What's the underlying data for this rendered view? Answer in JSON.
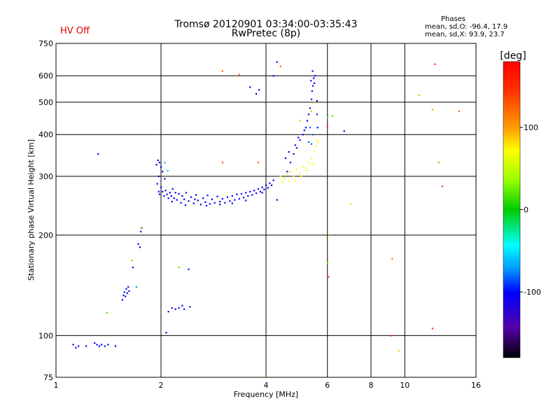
{
  "header": {
    "title_line1": "Tromsø 20120901 03:34:00-03:35:43",
    "title_line2": "RwPretec (8p)",
    "status": "HV Off",
    "phases_title": "Phases",
    "phases_o": "mean, sd,O: -96.4, 17.9",
    "phases_x": "mean, sd,X:  93.9, 23.7"
  },
  "colors": {
    "status": "#e00000",
    "gridline": "#000000"
  },
  "chart_data": {
    "type": "scatter",
    "xlabel": "Frequency [MHz]",
    "ylabel": "Stationary phase Virtual Height [km]",
    "x_scale": "log",
    "y_scale": "log",
    "xlim": [
      1,
      16
    ],
    "ylim": [
      75,
      750
    ],
    "x_ticks": [
      1,
      2,
      4,
      6,
      8,
      10,
      16
    ],
    "x_tick_labels": [
      "1",
      "2",
      "4",
      "6",
      "8",
      "10",
      "16"
    ],
    "x_grid": [
      2,
      4,
      6,
      8,
      10
    ],
    "y_ticks": [
      75,
      100,
      200,
      300,
      400,
      500,
      600,
      750
    ],
    "y_tick_labels": [
      "75",
      "100",
      "200",
      "300",
      "400",
      "500",
      "600",
      "750"
    ],
    "y_grid": [
      100,
      200,
      300,
      400,
      500,
      600
    ],
    "grid": true,
    "colorbar": {
      "label": "[deg]",
      "range": [
        -180,
        180
      ],
      "ticks": [
        100,
        0,
        -100
      ],
      "tick_labels": [
        "100",
        "0",
        "-100"
      ]
    },
    "series": [
      {
        "points": [
          [
            1.12,
            94,
            -100
          ],
          [
            1.14,
            92,
            -100
          ],
          [
            1.16,
            93,
            -100
          ],
          [
            1.22,
            93,
            -100
          ],
          [
            1.29,
            95,
            -100
          ],
          [
            1.31,
            94,
            -100
          ],
          [
            1.33,
            93,
            -100
          ],
          [
            1.35,
            94,
            -100
          ],
          [
            1.38,
            93,
            -100
          ],
          [
            1.41,
            94,
            -100
          ],
          [
            1.48,
            93,
            -100
          ],
          [
            1.55,
            128,
            -100
          ],
          [
            1.56,
            132,
            -100
          ],
          [
            1.57,
            135,
            -100
          ],
          [
            1.58,
            131,
            -100
          ],
          [
            1.59,
            138,
            -100
          ],
          [
            1.6,
            134,
            -100
          ],
          [
            1.61,
            140,
            -100
          ],
          [
            1.62,
            136,
            -100
          ],
          [
            1.66,
            160,
            -100
          ],
          [
            1.72,
            188,
            -100
          ],
          [
            1.74,
            184,
            -100
          ],
          [
            1.75,
            205,
            -100
          ],
          [
            1.76,
            210,
            -100
          ],
          [
            2.1,
            118,
            -100
          ],
          [
            2.15,
            121,
            -100
          ],
          [
            2.2,
            120,
            -100
          ],
          [
            2.25,
            121,
            -100
          ],
          [
            2.3,
            123,
            -100
          ],
          [
            2.33,
            120,
            -100
          ],
          [
            2.42,
            122,
            -100
          ],
          [
            2.4,
            158,
            -100
          ],
          [
            1.32,
            350,
            -100
          ],
          [
            2.07,
            102,
            -100
          ],
          [
            6.7,
            410,
            -100
          ],
          [
            4.3,
            255,
            -100
          ],
          [
            1.94,
            325,
            -100
          ],
          [
            1.96,
            335,
            -100
          ],
          [
            1.98,
            330,
            -100
          ],
          [
            2.0,
            320,
            -100
          ],
          [
            2.02,
            310,
            -100
          ],
          [
            1.97,
            300,
            -100
          ],
          [
            2.05,
            295,
            -100
          ],
          [
            1.95,
            285,
            -100
          ],
          [
            1.97,
            270,
            -100
          ],
          [
            1.98,
            265,
            -100
          ],
          [
            2.0,
            278,
            -100
          ],
          [
            2.02,
            270,
            -100
          ],
          [
            2.04,
            262,
            -100
          ],
          [
            2.06,
            272,
            -100
          ],
          [
            2.08,
            265,
            -100
          ],
          [
            2.1,
            258,
            -100
          ],
          [
            2.12,
            268,
            -100
          ],
          [
            2.14,
            262,
            -100
          ],
          [
            2.16,
            275,
            -100
          ],
          [
            2.18,
            258,
            -100
          ],
          [
            2.2,
            268,
            -100
          ],
          [
            2.22,
            255,
            -100
          ],
          [
            2.25,
            266,
            -100
          ],
          [
            2.28,
            250,
            -100
          ],
          [
            2.3,
            262,
            -100
          ],
          [
            2.33,
            256,
            -100
          ],
          [
            2.36,
            268,
            -100
          ],
          [
            2.4,
            253,
            -100
          ],
          [
            2.44,
            260,
            -100
          ],
          [
            2.48,
            249,
            -100
          ],
          [
            2.52,
            264,
            -100
          ],
          [
            2.55,
            254,
            -100
          ],
          [
            2.6,
            247,
            -100
          ],
          [
            2.64,
            258,
            -100
          ],
          [
            2.68,
            251,
            -100
          ],
          [
            2.72,
            263,
            -100
          ],
          [
            2.76,
            248,
            -100
          ],
          [
            2.8,
            256,
            -100
          ],
          [
            2.85,
            250,
            -100
          ],
          [
            2.9,
            261,
            -100
          ],
          [
            2.95,
            252,
            -100
          ],
          [
            3.0,
            257,
            -100
          ],
          [
            3.05,
            250,
            -100
          ],
          [
            3.1,
            260,
            -100
          ],
          [
            3.15,
            253,
            -100
          ],
          [
            3.2,
            262,
            -100
          ],
          [
            3.25,
            255,
            -100
          ],
          [
            3.3,
            265,
            -100
          ],
          [
            3.35,
            257,
            -100
          ],
          [
            3.4,
            266,
            -100
          ],
          [
            3.45,
            259,
            -100
          ],
          [
            3.5,
            268,
            -100
          ],
          [
            3.55,
            262,
            -100
          ],
          [
            3.6,
            270,
            -100
          ],
          [
            3.65,
            264,
            -100
          ],
          [
            3.7,
            272,
            -100
          ],
          [
            3.75,
            267,
            -100
          ],
          [
            3.8,
            275,
            -100
          ],
          [
            3.85,
            270,
            -100
          ],
          [
            3.9,
            278,
            -100
          ],
          [
            3.95,
            274,
            -100
          ],
          [
            4.0,
            282,
            -100
          ],
          [
            4.05,
            277,
            -100
          ],
          [
            4.1,
            286,
            -100
          ],
          [
            4.15,
            282,
            -100
          ],
          [
            4.2,
            292,
            -100
          ],
          [
            2.15,
            252,
            -100
          ],
          [
            2.35,
            246,
            -100
          ],
          [
            2.5,
            256,
            -100
          ],
          [
            2.7,
            245,
            -100
          ],
          [
            2.95,
            247,
            -100
          ],
          [
            3.2,
            249,
            -100
          ],
          [
            3.5,
            254,
            -100
          ],
          [
            3.9,
            268,
            -100
          ],
          [
            4.6,
            310,
            -100
          ],
          [
            4.7,
            330,
            -100
          ],
          [
            4.8,
            350,
            -100
          ],
          [
            4.9,
            365,
            -100
          ],
          [
            5.0,
            385,
            -100
          ],
          [
            5.1,
            400,
            -100
          ],
          [
            5.2,
            420,
            -100
          ],
          [
            5.25,
            440,
            -100
          ],
          [
            5.3,
            460,
            -100
          ],
          [
            5.35,
            480,
            -100
          ],
          [
            5.4,
            510,
            -100
          ],
          [
            5.42,
            540,
            -100
          ],
          [
            5.45,
            560,
            -100
          ],
          [
            5.48,
            590,
            -100
          ],
          [
            5.5,
            570,
            -100
          ],
          [
            5.52,
            600,
            -100
          ],
          [
            5.38,
            580,
            -100
          ],
          [
            5.44,
            620,
            -100
          ],
          [
            5.6,
            505,
            -100
          ],
          [
            5.6,
            460,
            -100
          ],
          [
            5.62,
            420,
            -100
          ],
          [
            4.55,
            340,
            -100
          ],
          [
            4.65,
            355,
            -100
          ],
          [
            4.85,
            372,
            -100
          ],
          [
            4.95,
            392,
            -100
          ],
          [
            5.15,
            412,
            -100
          ],
          [
            3.75,
            530,
            -100
          ],
          [
            3.82,
            545,
            -100
          ],
          [
            3.6,
            555,
            -100
          ],
          [
            4.2,
            600,
            -100
          ],
          [
            4.3,
            660,
            -100
          ],
          [
            5.4,
            375,
            -80
          ],
          [
            5.45,
            400,
            -80
          ],
          [
            5.35,
            420,
            -80
          ],
          [
            5.3,
            380,
            -80
          ],
          [
            2.05,
            330,
            -60
          ],
          [
            2.09,
            312,
            -60
          ],
          [
            1.7,
            140,
            -70
          ]
        ]
      },
      {
        "points": [
          [
            4.4,
            300,
            100
          ],
          [
            4.5,
            295,
            100
          ],
          [
            4.6,
            305,
            100
          ],
          [
            4.7,
            310,
            100
          ],
          [
            4.8,
            300,
            100
          ],
          [
            4.9,
            315,
            100
          ],
          [
            5.0,
            305,
            100
          ],
          [
            5.1,
            320,
            100
          ],
          [
            5.2,
            318,
            100
          ],
          [
            5.3,
            330,
            100
          ],
          [
            5.4,
            340,
            100
          ],
          [
            5.5,
            355,
            100
          ],
          [
            5.55,
            370,
            100
          ],
          [
            5.6,
            385,
            100
          ],
          [
            5.62,
            380,
            100
          ],
          [
            5.45,
            325,
            100
          ],
          [
            5.25,
            312,
            100
          ],
          [
            5.05,
            300,
            100
          ],
          [
            4.85,
            292,
            100
          ],
          [
            4.65,
            290,
            100
          ],
          [
            4.45,
            288,
            100
          ],
          [
            5.0,
            440,
            120
          ],
          [
            5.4,
            470,
            120
          ],
          [
            5.5,
            500,
            130
          ],
          [
            3.0,
            330,
            150
          ],
          [
            3.0,
            620,
            150
          ],
          [
            3.35,
            605,
            150
          ],
          [
            4.4,
            640,
            150
          ],
          [
            3.8,
            330,
            150
          ],
          [
            7.0,
            248,
            110
          ],
          [
            9.2,
            170,
            140
          ],
          [
            11.0,
            525,
            120
          ],
          [
            12.0,
            475,
            130
          ],
          [
            12.2,
            650,
            170
          ],
          [
            12.8,
            280,
            160
          ],
          [
            14.3,
            470,
            150
          ],
          [
            6.0,
            425,
            170
          ],
          [
            6.05,
            150,
            160
          ],
          [
            9.1,
            100,
            170
          ],
          [
            9.6,
            90,
            120
          ],
          [
            12.0,
            105,
            160
          ],
          [
            4.0,
            75,
            110
          ],
          [
            1.75,
            210,
            110
          ],
          [
            6.0,
            450,
            20
          ],
          [
            6.2,
            455,
            20
          ],
          [
            6.0,
            165,
            20
          ],
          [
            6.05,
            200,
            20
          ],
          [
            12.5,
            330,
            20
          ],
          [
            1.65,
            168,
            20
          ],
          [
            2.25,
            160,
            20
          ],
          [
            1.4,
            117,
            20
          ]
        ]
      }
    ]
  }
}
